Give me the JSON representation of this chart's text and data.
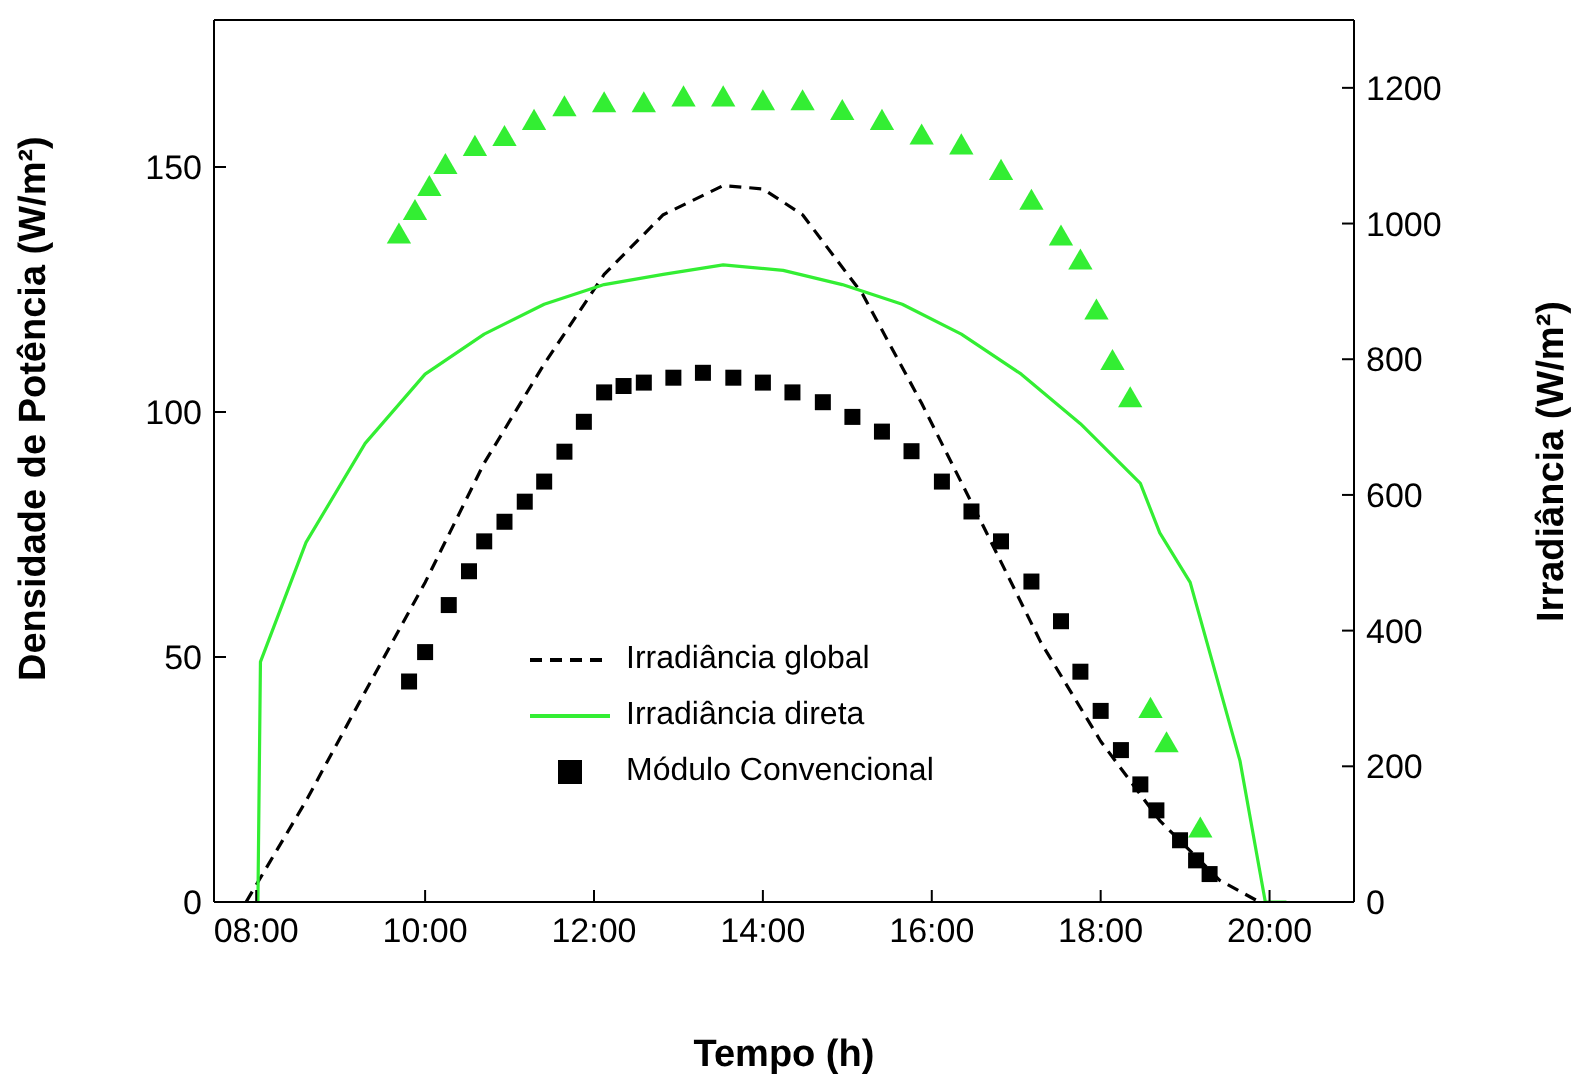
{
  "chart_data": {
    "type": "line",
    "xlabel": "Tempo (h)",
    "ylabel": "Densidade de Potência (W/m²)",
    "y2label": "Irradiância (W/m²)",
    "xlim": [
      7.5,
      21
    ],
    "xticks": [
      {
        "value": 8,
        "label": "08:00"
      },
      {
        "value": 10,
        "label": "10:00"
      },
      {
        "value": 12,
        "label": "12:00"
      },
      {
        "value": 14,
        "label": "14:00"
      },
      {
        "value": 16,
        "label": "16:00"
      },
      {
        "value": 18,
        "label": "18:00"
      },
      {
        "value": 20,
        "label": "20:00"
      }
    ],
    "ylim": [
      0,
      180
    ],
    "yticks": [
      0,
      50,
      100,
      150
    ],
    "y2lim": [
      0,
      1300
    ],
    "y2ticks": [
      0,
      200,
      400,
      600,
      800,
      1000,
      1200
    ],
    "grid": false,
    "legend": "bottom",
    "series": [
      {
        "name": "Irradiância global",
        "axis": "y2",
        "color": "#000000",
        "line_style": "dashed",
        "x": [
          7.88,
          8.59,
          9.29,
          10,
          10.7,
          11.41,
          12.12,
          12.82,
          13.53,
          14,
          14.47,
          15.18,
          15.88,
          16.59,
          17.29,
          18,
          18.7,
          19.41,
          19.88
        ],
        "values": [
          0,
          149,
          310,
          471,
          647,
          793,
          925,
          1013,
          1056,
          1051,
          1013,
          896,
          735,
          559,
          383,
          237,
          120,
          32,
          0
        ]
      },
      {
        "name": "Irradiância direta",
        "axis": "y2",
        "color": "#33ee33",
        "line_style": "solid",
        "x": [
          8.02,
          8.05,
          8.59,
          9.29,
          10,
          10.7,
          11.41,
          12.12,
          12.82,
          13.53,
          14.24,
          14.94,
          15.65,
          16.35,
          17.06,
          17.76,
          18.47,
          18.7,
          19.06,
          19.65,
          19.95,
          20.2
        ],
        "values": [
          0,
          354,
          530,
          676,
          778,
          837,
          881,
          910,
          925,
          939,
          931,
          910,
          881,
          837,
          778,
          705,
          617,
          544,
          471,
          208,
          0,
          0
        ]
      },
      {
        "type": "scatter",
        "axis": "y",
        "color": "#33ee33",
        "marker": "triangle",
        "x": [
          9.69,
          9.88,
          10.05,
          10.24,
          10.59,
          10.94,
          11.29,
          11.65,
          12.12,
          12.59,
          13.06,
          13.53,
          14,
          14.47,
          14.94,
          15.41,
          15.88,
          16.35,
          16.82,
          17.18,
          17.53,
          17.76,
          17.95,
          18.14,
          18.35,
          18.59,
          18.78,
          19.18
        ],
        "values": [
          135.8,
          140.6,
          145.5,
          150,
          153.7,
          155.7,
          159,
          161.8,
          162.6,
          162.6,
          163.8,
          163.8,
          163,
          163,
          161,
          159,
          156,
          154,
          148.8,
          142.7,
          135.4,
          130.5,
          120.3,
          110,
          102.4,
          39,
          32,
          14.6
        ]
      },
      {
        "name": "Módulo Convencional",
        "type": "scatter",
        "axis": "y",
        "color": "#000000",
        "marker": "square",
        "x": [
          9.81,
          10,
          10.28,
          10.52,
          10.7,
          10.94,
          11.18,
          11.41,
          11.65,
          11.88,
          12.12,
          12.35,
          12.59,
          12.94,
          13.29,
          13.65,
          14,
          14.35,
          14.71,
          15.06,
          15.41,
          15.76,
          16.12,
          16.47,
          16.82,
          17.18,
          17.53,
          17.76,
          18,
          18.24,
          18.47,
          18.66,
          18.94,
          19.13,
          19.29
        ],
        "values": [
          45,
          51,
          60.6,
          67.5,
          73.6,
          77.6,
          81.7,
          85.8,
          91.9,
          98,
          104,
          105.3,
          106,
          107,
          108,
          107,
          106,
          104,
          102,
          99,
          96,
          92,
          85.8,
          79.7,
          73.6,
          65.4,
          57.3,
          47,
          39,
          31,
          24,
          18.7,
          12.6,
          8.5,
          5.7
        ]
      }
    ]
  }
}
